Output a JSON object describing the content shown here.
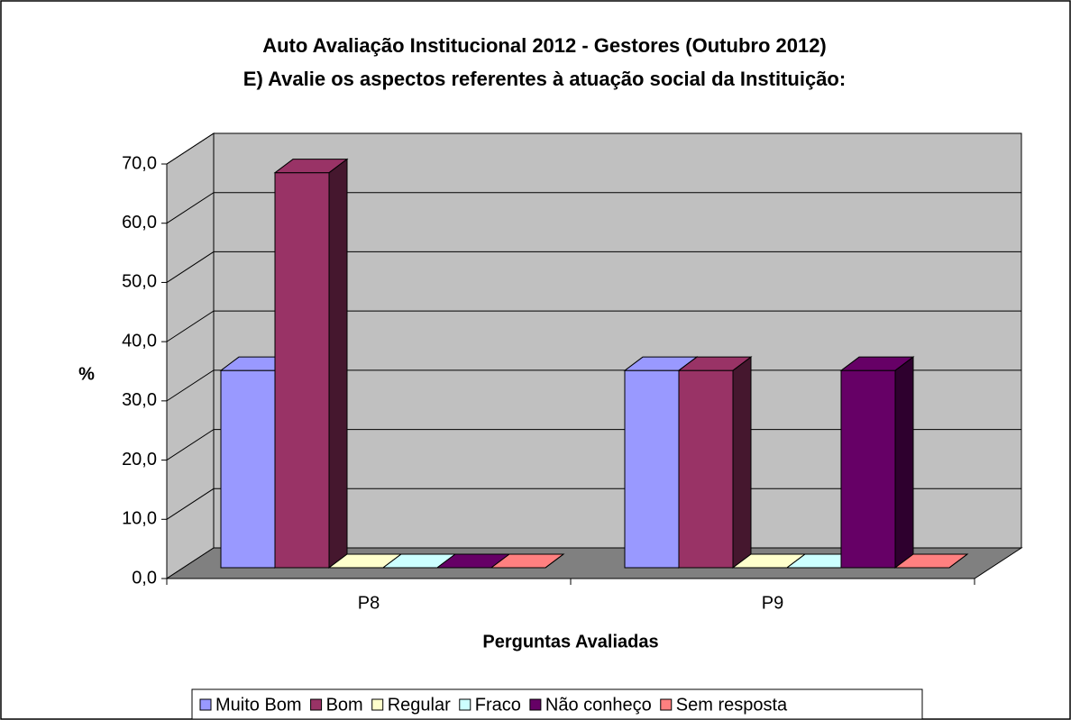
{
  "chart_data": {
    "type": "bar3d",
    "title": [
      "Auto Avaliação Institucional 2012 - Gestores (Outubro 2012)",
      "E) Avalie os aspectos referentes à atuação social da Instituição:"
    ],
    "ylabel": "%",
    "xlabel": "Perguntas Avaliadas",
    "categories": [
      "P8",
      "P9"
    ],
    "series": [
      {
        "name": "Muito Bom",
        "color": "#9999ff",
        "values": [
          33.3,
          33.3
        ]
      },
      {
        "name": "Bom",
        "color": "#993366",
        "values": [
          66.7,
          33.3
        ]
      },
      {
        "name": "Regular",
        "color": "#ffffcc",
        "values": [
          0,
          0
        ]
      },
      {
        "name": "Fraco",
        "color": "#ccffff",
        "values": [
          0,
          0
        ]
      },
      {
        "name": "Não conheço",
        "color": "#660066",
        "values": [
          0,
          33.3
        ]
      },
      {
        "name": "Sem resposta",
        "color": "#ff8080",
        "values": [
          0,
          0
        ]
      }
    ],
    "ylim": [
      0,
      70
    ],
    "yticks": [
      {
        "value": 0,
        "label": "0,0"
      },
      {
        "value": 10,
        "label": "10,0"
      },
      {
        "value": 20,
        "label": "20,0"
      },
      {
        "value": 30,
        "label": "30,0"
      },
      {
        "value": 40,
        "label": "40,0"
      },
      {
        "value": 50,
        "label": "50,0"
      },
      {
        "value": 60,
        "label": "60,0"
      },
      {
        "value": 70,
        "label": "70,0"
      }
    ],
    "grid": true,
    "legend": "bottom"
  }
}
